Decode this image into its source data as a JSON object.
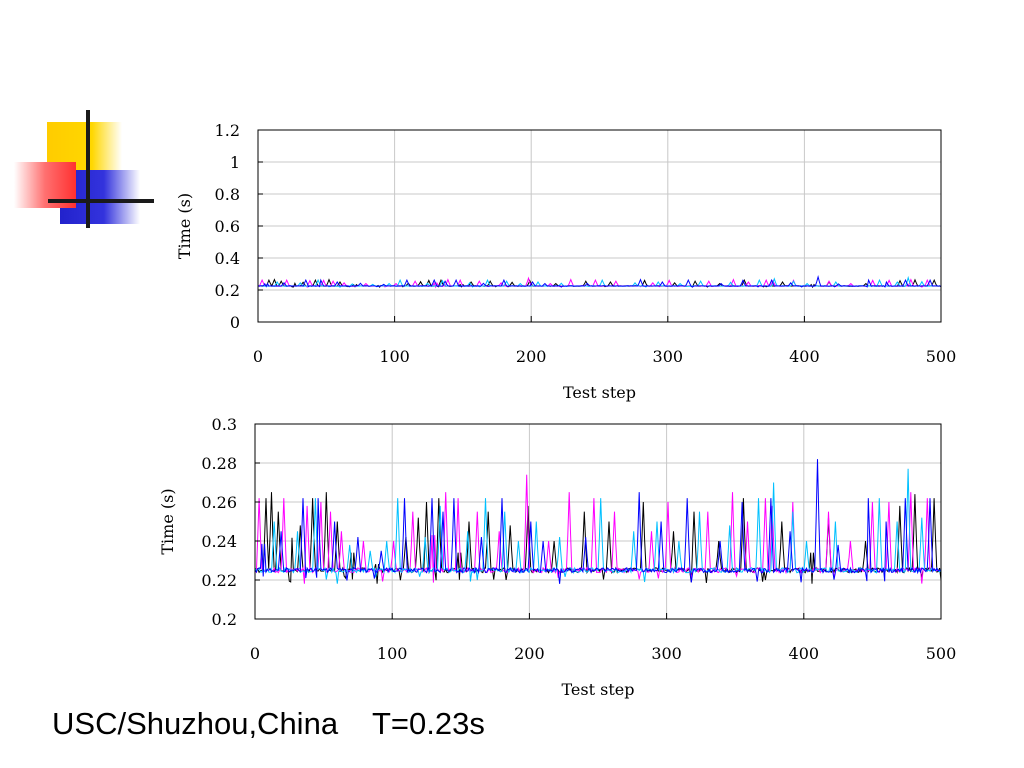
{
  "caption": "USC/Shuzhou,China    T=0.23s",
  "series_colors": [
    "#000000",
    "#ff00ff",
    "#00c0ff",
    "#0000ff"
  ],
  "chart_data": [
    {
      "type": "line",
      "title": "",
      "xlabel": "Test step",
      "ylabel": "Time (s)",
      "xlim": [
        0,
        500
      ],
      "ylim": [
        0,
        1.2
      ],
      "xticks": [
        0,
        100,
        200,
        300,
        400,
        500
      ],
      "xtick_labels": [
        "0",
        "100",
        "200",
        "300",
        "400",
        "500"
      ],
      "yticks": [
        0,
        0.2,
        0.4,
        0.6,
        0.8,
        1,
        1.2
      ],
      "ytick_labels": [
        "0",
        "0.2",
        "0.4",
        "0.6",
        "0.8",
        "1",
        "1.2"
      ],
      "grid": true,
      "legend": "none",
      "baseline_value": 0.225,
      "series_count": 4,
      "peak_times": [
        [
          8,
          12,
          17,
          26,
          33,
          42,
          52,
          60,
          71,
          89,
          110,
          119,
          125,
          134,
          149,
          156,
          170,
          186,
          199,
          218,
          240,
          258,
          283,
          305,
          320,
          338,
          356,
          384,
          406,
          418,
          445,
          470,
          481,
          495
        ],
        [
          3,
          21,
          38,
          48,
          55,
          63,
          79,
          101,
          115,
          130,
          139,
          148,
          162,
          178,
          198,
          214,
          229,
          247,
          262,
          289,
          301,
          330,
          348,
          359,
          372,
          377,
          392,
          418,
          434,
          450,
          462,
          478,
          490
        ],
        [
          14,
          31,
          44,
          69,
          84,
          96,
          104,
          124,
          135,
          155,
          168,
          182,
          192,
          205,
          222,
          252,
          276,
          293,
          309,
          324,
          346,
          367,
          378,
          392,
          402,
          423,
          455,
          468,
          476,
          486
        ],
        [
          6,
          19,
          35,
          46,
          58,
          75,
          92,
          109,
          129,
          137,
          145,
          165,
          180,
          201,
          210,
          241,
          280,
          296,
          315,
          339,
          355,
          376,
          390,
          410,
          425,
          447,
          460,
          474,
          492
        ]
      ],
      "peak_heights": [
        [
          0.262,
          0.265,
          0.255,
          0.262,
          0.248,
          0.262,
          0.265,
          0.25,
          0.245,
          0.232,
          0.242,
          0.252,
          0.26,
          0.262,
          0.245,
          0.25,
          0.255,
          0.248,
          0.258,
          0.24,
          0.255,
          0.25,
          0.26,
          0.245,
          0.255,
          0.24,
          0.262,
          0.25,
          0.245,
          0.252,
          0.24,
          0.258,
          0.264,
          0.262
        ],
        [
          0.262,
          0.262,
          0.258,
          0.26,
          0.255,
          0.245,
          0.24,
          0.24,
          0.255,
          0.265,
          0.265,
          0.262,
          0.255,
          0.245,
          0.274,
          0.24,
          0.265,
          0.262,
          0.255,
          0.245,
          0.26,
          0.255,
          0.265,
          0.25,
          0.262,
          0.258,
          0.26,
          0.255,
          0.24,
          0.26,
          0.26,
          0.265,
          0.262
        ],
        [
          0.25,
          0.245,
          0.262,
          0.238,
          0.235,
          0.24,
          0.262,
          0.242,
          0.258,
          0.245,
          0.262,
          0.255,
          0.24,
          0.25,
          0.242,
          0.262,
          0.245,
          0.25,
          0.24,
          0.255,
          0.248,
          0.262,
          0.27,
          0.255,
          0.24,
          0.25,
          0.262,
          0.25,
          0.277,
          0.252
        ],
        [
          0.255,
          0.245,
          0.262,
          0.262,
          0.25,
          0.242,
          0.235,
          0.262,
          0.262,
          0.255,
          0.262,
          0.242,
          0.262,
          0.25,
          0.24,
          0.242,
          0.265,
          0.25,
          0.262,
          0.24,
          0.26,
          0.262,
          0.245,
          0.282,
          0.238,
          0.262,
          0.25,
          0.262,
          0.262
        ]
      ]
    },
    {
      "type": "line",
      "title": "",
      "xlabel": "Test step",
      "ylabel": "Time (s)",
      "xlim": [
        0,
        500
      ],
      "ylim": [
        0.2,
        0.3
      ],
      "xticks": [
        0,
        100,
        200,
        300,
        400,
        500
      ],
      "xtick_labels": [
        "0",
        "100",
        "200",
        "300",
        "400",
        "500"
      ],
      "yticks": [
        0.2,
        0.22,
        0.24,
        0.26,
        0.28,
        0.3
      ],
      "ytick_labels": [
        "0.2",
        "0.22",
        "0.24",
        "0.26",
        "0.28",
        "0.3"
      ],
      "grid": true,
      "legend": "none",
      "baseline_value": 0.225,
      "series_count": 4,
      "peak_times": [
        [
          8,
          12,
          17,
          26,
          33,
          42,
          52,
          60,
          71,
          89,
          110,
          119,
          125,
          134,
          149,
          156,
          170,
          186,
          199,
          218,
          240,
          258,
          283,
          305,
          320,
          338,
          356,
          384,
          406,
          418,
          445,
          470,
          481,
          495
        ],
        [
          3,
          21,
          38,
          48,
          55,
          63,
          79,
          101,
          115,
          130,
          139,
          148,
          162,
          178,
          198,
          214,
          229,
          247,
          262,
          289,
          301,
          330,
          348,
          359,
          372,
          377,
          392,
          418,
          434,
          450,
          462,
          478,
          490
        ],
        [
          14,
          31,
          44,
          69,
          84,
          96,
          104,
          124,
          135,
          155,
          168,
          182,
          192,
          205,
          222,
          252,
          276,
          293,
          309,
          324,
          346,
          367,
          378,
          392,
          402,
          423,
          455,
          468,
          476,
          486
        ],
        [
          6,
          19,
          35,
          46,
          58,
          75,
          92,
          109,
          129,
          137,
          145,
          165,
          180,
          201,
          210,
          241,
          280,
          296,
          315,
          339,
          355,
          376,
          390,
          410,
          425,
          447,
          460,
          474,
          492
        ]
      ],
      "peak_heights": [
        [
          0.262,
          0.265,
          0.255,
          0.262,
          0.248,
          0.262,
          0.265,
          0.25,
          0.245,
          0.232,
          0.242,
          0.252,
          0.26,
          0.262,
          0.245,
          0.25,
          0.255,
          0.248,
          0.258,
          0.24,
          0.255,
          0.25,
          0.26,
          0.245,
          0.255,
          0.24,
          0.262,
          0.25,
          0.245,
          0.252,
          0.24,
          0.258,
          0.264,
          0.262
        ],
        [
          0.262,
          0.262,
          0.258,
          0.26,
          0.255,
          0.245,
          0.24,
          0.24,
          0.255,
          0.265,
          0.265,
          0.262,
          0.255,
          0.245,
          0.274,
          0.24,
          0.265,
          0.262,
          0.255,
          0.245,
          0.26,
          0.255,
          0.265,
          0.25,
          0.262,
          0.258,
          0.26,
          0.255,
          0.24,
          0.26,
          0.26,
          0.265,
          0.262
        ],
        [
          0.25,
          0.245,
          0.262,
          0.238,
          0.235,
          0.24,
          0.262,
          0.242,
          0.258,
          0.245,
          0.262,
          0.255,
          0.24,
          0.25,
          0.242,
          0.262,
          0.245,
          0.25,
          0.24,
          0.255,
          0.248,
          0.262,
          0.27,
          0.255,
          0.24,
          0.25,
          0.262,
          0.25,
          0.277,
          0.252
        ],
        [
          0.255,
          0.245,
          0.262,
          0.262,
          0.25,
          0.242,
          0.235,
          0.262,
          0.262,
          0.255,
          0.262,
          0.242,
          0.262,
          0.25,
          0.24,
          0.242,
          0.265,
          0.25,
          0.262,
          0.24,
          0.26,
          0.262,
          0.245,
          0.282,
          0.238,
          0.262,
          0.25,
          0.262,
          0.262
        ]
      ]
    }
  ]
}
